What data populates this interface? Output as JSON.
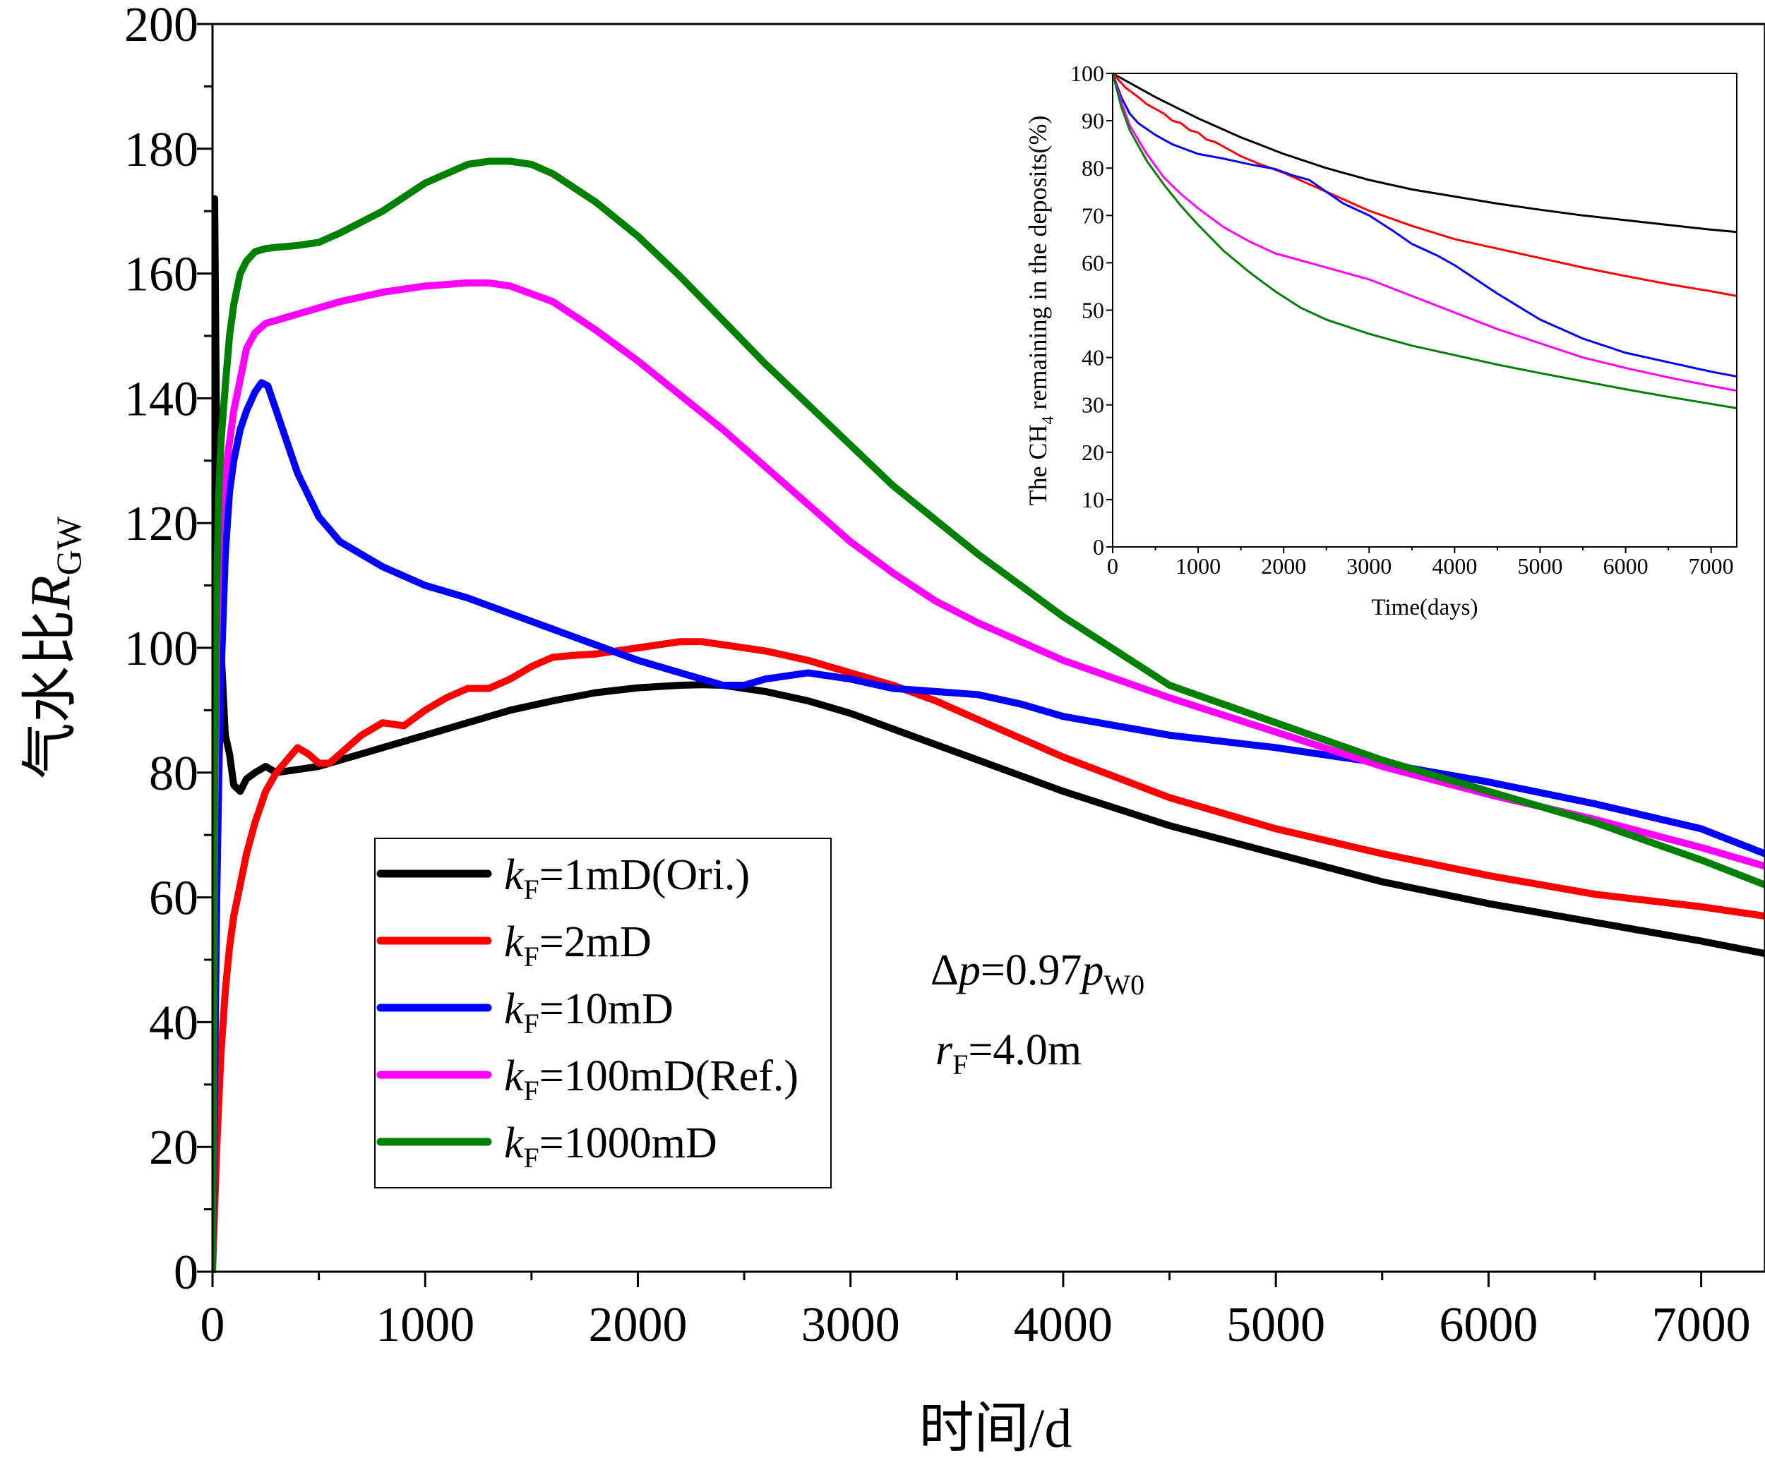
{
  "chart_data": [
    {
      "type": "line",
      "xlabel": "时间/d",
      "ylabel": {
        "text": "气水比",
        "var": "R",
        "sub": "GW"
      },
      "xlim": [
        0,
        7300
      ],
      "ylim": [
        0,
        200
      ],
      "xticks": [
        "0",
        "1000",
        "2000",
        "3000",
        "4000",
        "5000",
        "6000",
        "7000"
      ],
      "yticks": [
        "0",
        "20",
        "40",
        "60",
        "80",
        "100",
        "120",
        "140",
        "160",
        "180",
        "200"
      ],
      "grid": false,
      "legend_position": "lower-left",
      "annotations": [
        {
          "parts": [
            [
              "Δ",
              "n"
            ],
            [
              "p",
              "i"
            ],
            [
              "=0.97",
              "n"
            ],
            [
              "p",
              "i"
            ],
            [
              "W0",
              "sub"
            ]
          ]
        },
        {
          "parts": [
            [
              "r",
              "i"
            ],
            [
              "F",
              "sub"
            ],
            [
              "=4.0m",
              "n"
            ]
          ]
        }
      ],
      "series": [
        {
          "name": "kF=1mD(Ori.)",
          "label": {
            "k": "k",
            "sub": "F",
            "rest": "=1mD(Ori.)"
          },
          "color": "#000000",
          "x": [
            0,
            5,
            10,
            20,
            40,
            60,
            80,
            100,
            130,
            160,
            200,
            250,
            300,
            400,
            500,
            600,
            700,
            800,
            1000,
            1200,
            1400,
            1600,
            1800,
            2000,
            2200,
            2300,
            2400,
            2600,
            2800,
            3000,
            3200,
            3400,
            3600,
            3800,
            4000,
            4500,
            5000,
            5500,
            6000,
            6500,
            7000,
            7300
          ],
          "y": [
            0,
            120,
            172,
            130,
            100,
            86,
            83,
            78,
            77,
            79,
            80,
            81,
            80,
            80.5,
            81,
            82,
            83,
            84,
            86,
            88,
            90,
            91.5,
            92.8,
            93.6,
            94,
            94.1,
            94,
            93,
            91.5,
            89.5,
            87,
            84.5,
            82,
            79.5,
            77,
            71.5,
            67,
            62.5,
            59,
            56,
            53,
            51
          ]
        },
        {
          "name": "kF=2mD",
          "label": {
            "k": "k",
            "sub": "F",
            "rest": "=2mD"
          },
          "color": "#ff0000",
          "x": [
            0,
            20,
            40,
            60,
            80,
            100,
            130,
            160,
            200,
            250,
            300,
            350,
            400,
            450,
            500,
            550,
            600,
            700,
            800,
            900,
            1000,
            1100,
            1200,
            1300,
            1400,
            1500,
            1600,
            1700,
            1800,
            1900,
            2000,
            2100,
            2200,
            2300,
            2400,
            2600,
            2800,
            3000,
            3200,
            3400,
            3600,
            3800,
            4000,
            4500,
            5000,
            5500,
            6000,
            6500,
            7000,
            7300
          ],
          "y": [
            0,
            20,
            35,
            45,
            52,
            57,
            62,
            67,
            72,
            77,
            80,
            82,
            84,
            83,
            81.5,
            81.5,
            83,
            86,
            88,
            87.5,
            90,
            92,
            93.5,
            93.5,
            95,
            97,
            98.5,
            98.8,
            99,
            99.5,
            100,
            100.5,
            101,
            101,
            100.5,
            99.5,
            98,
            96,
            94,
            91.5,
            88.5,
            85.5,
            82.5,
            76,
            71,
            67,
            63.5,
            60.5,
            58.5,
            57
          ]
        },
        {
          "name": "kF=10mD",
          "label": {
            "k": "k",
            "sub": "F",
            "rest": "=10mD"
          },
          "color": "#0000ff",
          "x": [
            0,
            10,
            20,
            30,
            40,
            60,
            80,
            100,
            130,
            160,
            200,
            230,
            260,
            300,
            350,
            400,
            500,
            600,
            800,
            1000,
            1200,
            1400,
            1600,
            1800,
            2000,
            2200,
            2400,
            2500,
            2600,
            2800,
            3000,
            3200,
            3400,
            3600,
            3800,
            4000,
            4500,
            5000,
            5500,
            6000,
            6500,
            7000,
            7300
          ],
          "y": [
            0,
            30,
            60,
            80,
            95,
            115,
            125,
            130,
            135,
            138,
            141,
            142.5,
            142,
            138,
            133,
            128,
            121,
            117,
            113,
            110,
            108,
            105.5,
            103,
            100.5,
            98,
            96,
            94,
            94,
            95,
            96,
            95,
            93.5,
            93,
            92.5,
            91,
            89,
            86,
            84,
            81.5,
            78.5,
            75,
            71,
            67
          ]
        },
        {
          "name": "kF=100mD(Ref.)",
          "label": {
            "k": "k",
            "sub": "F",
            "rest": "=100mD(Ref.)"
          },
          "color": "#ff00ff",
          "x": [
            0,
            10,
            20,
            30,
            40,
            60,
            80,
            100,
            130,
            160,
            200,
            250,
            300,
            400,
            500,
            600,
            800,
            1000,
            1200,
            1300,
            1400,
            1600,
            1800,
            2000,
            2200,
            2400,
            2600,
            2800,
            3000,
            3200,
            3400,
            3600,
            3800,
            4000,
            4500,
            5000,
            5500,
            6000,
            6500,
            7000,
            7300
          ],
          "y": [
            0,
            70,
            100,
            115,
            122,
            128,
            133,
            138,
            143,
            148,
            150.5,
            152,
            152.5,
            153.5,
            154.5,
            155.5,
            157,
            158,
            158.5,
            158.5,
            158,
            155.5,
            151,
            146,
            140.5,
            135,
            129,
            123,
            117,
            112,
            107.5,
            104,
            101,
            98,
            92,
            86.5,
            81,
            76.5,
            72.5,
            68,
            65
          ]
        },
        {
          "name": "kF=1000mD",
          "label": {
            "k": "k",
            "sub": "F",
            "rest": "=1000mD"
          },
          "color": "#008000",
          "x": [
            0,
            10,
            20,
            30,
            40,
            60,
            80,
            100,
            130,
            160,
            200,
            250,
            300,
            400,
            500,
            600,
            800,
            1000,
            1200,
            1300,
            1400,
            1500,
            1600,
            1800,
            2000,
            2200,
            2400,
            2600,
            2800,
            3000,
            3200,
            3400,
            3600,
            3800,
            4000,
            4500,
            5000,
            5500,
            6000,
            6500,
            7000,
            7300
          ],
          "y": [
            0,
            80,
            110,
            125,
            133,
            142,
            150,
            155,
            160,
            162,
            163.5,
            164,
            164.2,
            164.5,
            165,
            166.5,
            170,
            174.5,
            177.5,
            178,
            178,
            177.5,
            176,
            171.5,
            166,
            159.5,
            152.5,
            145.5,
            139,
            132.5,
            126,
            120.5,
            115,
            110,
            105,
            94,
            88,
            82,
            77,
            72,
            66,
            62
          ]
        }
      ]
    },
    {
      "type": "line",
      "title": "",
      "xlabel": "Time(days)",
      "ylabel": {
        "pre": "The CH",
        "sub": "4",
        "post": " remaining in the deposits(%)"
      },
      "xlim": [
        0,
        7300
      ],
      "ylim": [
        0,
        100
      ],
      "xticks": [
        "0",
        "1000",
        "2000",
        "3000",
        "4000",
        "5000",
        "6000",
        "7000"
      ],
      "yticks": [
        "0",
        "10",
        "20",
        "30",
        "40",
        "50",
        "60",
        "70",
        "80",
        "90",
        "100"
      ],
      "grid": false,
      "legend_position": "none",
      "series": [
        {
          "color": "#000000",
          "x": [
            0,
            500,
            1000,
            1500,
            2000,
            2500,
            3000,
            3500,
            4000,
            4500,
            5000,
            5500,
            6000,
            6500,
            7000,
            7300
          ],
          "y": [
            100,
            95,
            90.5,
            86.5,
            83,
            80,
            77.5,
            75.5,
            74,
            72.5,
            71.2,
            70,
            69,
            68,
            67,
            66.5
          ]
        },
        {
          "color": "#ff0000",
          "x": [
            0,
            150,
            300,
            400,
            500,
            600,
            700,
            800,
            900,
            1000,
            1100,
            1200,
            1300,
            1400,
            1500,
            1700,
            2000,
            2500,
            3000,
            3500,
            4000,
            4500,
            5000,
            5500,
            6000,
            6500,
            7000,
            7300
          ],
          "y": [
            100,
            97,
            95,
            93.5,
            92.5,
            91.5,
            90,
            89.5,
            88,
            87.5,
            86,
            85.5,
            84.5,
            83.5,
            82.5,
            81,
            79,
            75,
            71,
            67.8,
            65,
            63,
            61,
            59,
            57.2,
            55.5,
            54,
            53
          ]
        },
        {
          "color": "#0000ff",
          "x": [
            0,
            100,
            200,
            300,
            500,
            700,
            1000,
            1300,
            1600,
            1900,
            2100,
            2300,
            2500,
            2700,
            3000,
            3300,
            3500,
            3800,
            4000,
            4500,
            5000,
            5500,
            6000,
            6500,
            7000,
            7300
          ],
          "y": [
            100,
            95,
            91.5,
            89.5,
            87,
            85,
            83,
            82,
            80.8,
            79.8,
            78.5,
            77.5,
            75,
            72.5,
            70,
            66.5,
            64,
            61.5,
            59.5,
            53.5,
            48,
            44,
            41,
            39,
            37,
            36
          ]
        },
        {
          "color": "#ff00ff",
          "x": [
            0,
            100,
            200,
            400,
            600,
            800,
            1000,
            1300,
            1600,
            1900,
            2200,
            2500,
            3000,
            3500,
            4000,
            4500,
            5000,
            5500,
            6000,
            6500,
            7000,
            7300
          ],
          "y": [
            100,
            94,
            89,
            83,
            78,
            74.5,
            71.5,
            67.5,
            64.5,
            62,
            60.5,
            59,
            56.5,
            53,
            49.5,
            46,
            43,
            40,
            37.8,
            35.8,
            34,
            33
          ]
        },
        {
          "color": "#008000",
          "x": [
            0,
            100,
            200,
            400,
            600,
            800,
            1000,
            1300,
            1600,
            1900,
            2200,
            2500,
            3000,
            3500,
            4000,
            4500,
            5000,
            5500,
            6000,
            6500,
            7000,
            7300
          ],
          "y": [
            100,
            93,
            88,
            81.5,
            76.5,
            72,
            68,
            62.5,
            58,
            54,
            50.5,
            48,
            45,
            42.5,
            40.5,
            38.5,
            36.7,
            35,
            33.3,
            31.7,
            30.2,
            29.3
          ]
        }
      ]
    }
  ]
}
